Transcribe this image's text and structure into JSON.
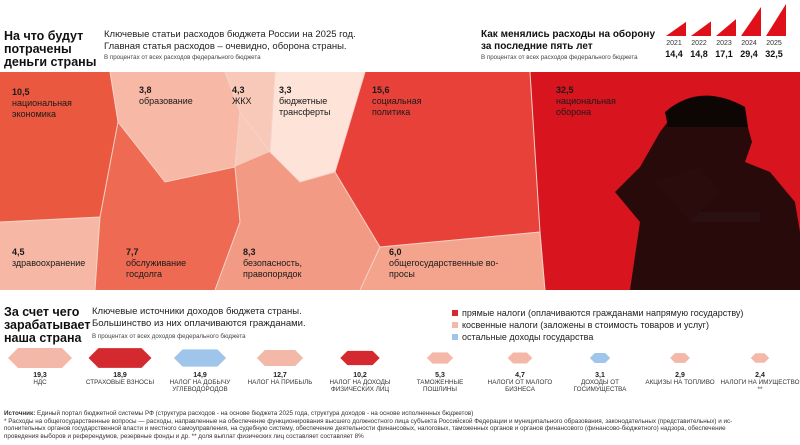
{
  "spending": {
    "heading": [
      "На что будут",
      "потрачены",
      "деньги страны"
    ],
    "intro": [
      "Ключевые статьи расходов бюджета России на 2025 год.",
      "Главная статья расходов – очевидно, оборона страны."
    ],
    "note": "В процентах от всех расходов федерального бюджета"
  },
  "defense_trend": {
    "title": [
      "Как менялись расходы на оборону",
      "за последние пять лет"
    ],
    "note": "В процентах от всех расходов федерального бюджета",
    "colors": {
      "bar": "#e0101a"
    }
  },
  "cells": [
    {
      "value": "10,5",
      "label": [
        "национальная",
        "экономика"
      ]
    },
    {
      "value": "3,8",
      "label": [
        "образование"
      ]
    },
    {
      "value": "4,3",
      "label": [
        "ЖКХ"
      ]
    },
    {
      "value": "3,3",
      "label": [
        "бюджетные",
        "трансферты"
      ]
    },
    {
      "value": "15,6",
      "label": [
        "социальная",
        "политика"
      ]
    },
    {
      "value": "32,5",
      "label": [
        "национальная",
        "оборона"
      ]
    },
    {
      "value": "4,5",
      "label": [
        "здравоохранение"
      ]
    },
    {
      "value": "7,7",
      "label": [
        "обслуживание",
        "госдолга"
      ]
    },
    {
      "value": "8,3",
      "label": [
        "безопасность,",
        "правопорядок"
      ]
    },
    {
      "value": "6,0",
      "label": [
        "общегосударственные во-",
        "просы"
      ]
    }
  ],
  "income": {
    "heading": [
      "За счет чего",
      "зарабатывает",
      "наша страна"
    ],
    "intro": [
      "Ключевые источники доходов бюджета страны.",
      "Большинство из них оплачиваются гражданами."
    ],
    "note": "В процентах от всех доходов федерального бюджета",
    "legend": [
      {
        "label": "прямые налоги (оплачиваются гражданами напрямую государству)",
        "color": "#d42a2f"
      },
      {
        "label": "косвенные налоги (заложены в стоимость товаров и услуг)",
        "color": "#f4b8a8"
      },
      {
        "label": "остальные доходы государства",
        "color": "#9fc6ea"
      }
    ]
  },
  "chart_data": [
    {
      "type": "bar",
      "categories": [
        "2021",
        "2022",
        "2023",
        "2024",
        "2025"
      ],
      "values": [
        14.4,
        14.8,
        17.1,
        29.4,
        32.5
      ],
      "value_labels": [
        "14,4",
        "14,8",
        "17,1",
        "29,4",
        "32,5"
      ],
      "title": "Как менялись расходы на оборону за последние пять лет"
    },
    {
      "type": "voronoi-treemap",
      "title": "На что будут потрачены деньги страны",
      "categories": [
        "национальная экономика",
        "образование",
        "ЖКХ",
        "бюджетные трансферты",
        "социальная политика",
        "национальная оборона",
        "здравоохранение",
        "обслуживание госдолга",
        "безопасность, правопорядок",
        "общегосударственные вопросы"
      ],
      "values": [
        10.5,
        3.8,
        4.3,
        3.3,
        15.6,
        32.5,
        4.5,
        7.7,
        8.3,
        6.0
      ]
    },
    {
      "type": "scatter",
      "title": "За счет чего зарабатывает наша страна",
      "categories": [
        "НДС",
        "СТРАХОВЫЕ ВЗНОСЫ",
        "НАЛОГ НА ДОБЫЧУ УГЛЕВОДОРОДОВ",
        "НАЛОГ НА ПРИБЫЛЬ",
        "НАЛОГ НА ДОХОДЫ ФИЗИЧЕСКИХ ЛИЦ",
        "ТАМОЖЕННЫЕ ПОШЛИНЫ",
        "НАЛОГИ ОТ МАЛОГО БИЗНЕСА",
        "ДОХОДЫ ОТ ГОСИМУЩЕСТВА",
        "АКЦИЗЫ НА ТОПЛИВО",
        "НАЛОГИ НА ИМУЩЕСТВО **"
      ],
      "values": [
        19.3,
        18.9,
        14.9,
        12.7,
        10.2,
        5.3,
        4.7,
        3.1,
        2.9,
        2.4
      ],
      "value_labels": [
        "19,3",
        "18,9",
        "14,9",
        "12,7",
        "10,2",
        "5,3",
        "4,7",
        "3,1",
        "2,9",
        "2,4"
      ],
      "groups": [
        "косвенные",
        "прямые",
        "остальные",
        "косвенные",
        "прямые",
        "косвенные",
        "косвенные",
        "остальные",
        "косвенные",
        "косвенные"
      ]
    }
  ],
  "footer": {
    "source_label": "Источник:",
    "source_text": "Единый портал бюджетной системы РФ (структура расходов - на основе бюджета 2025 года, структура доходов - на основе исполненных бюджетов)",
    "note1": "* Расходы на общегосударственные вопросы — расходы, направленные на обеспечение функционирования высшего должностного лица субъекта Российской Федерации и муниципального образования, законодательных (представительных) и ис-",
    "note2": "полнительных органов государственной власти и местного самоуправления, на судебную систему, обеспечение деятельности финансовых, налоговых, таможенных органов и органов финансового (финансово-бюджетного) надзора, обеспечение",
    "note3": "проведения выборов и референдумов, резервные фонды и др. ** доля выплат физических лиц составляет составляет 8%"
  }
}
